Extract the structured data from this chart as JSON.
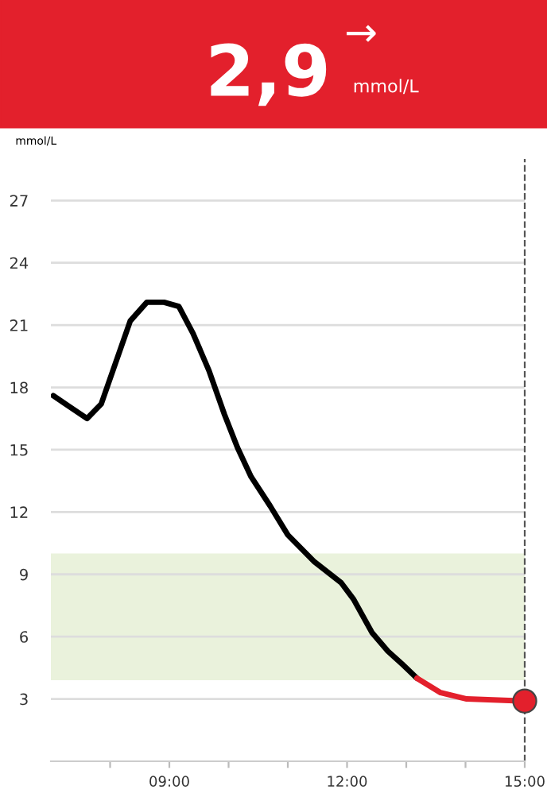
{
  "chart_data": {
    "type": "line",
    "title": "2,9",
    "subtitle": "mmol/L",
    "annotations": [
      "→"
    ],
    "ylabel": "mmol/L",
    "series": [
      {
        "color": "#000000",
        "x": [
          7.04,
          7.61,
          7.85,
          8.34,
          8.62,
          8.91,
          9.16,
          9.4,
          9.67,
          9.93,
          10.15,
          10.38,
          10.7,
          11.0,
          11.45,
          11.9,
          12.11,
          12.42,
          12.69,
          12.96,
          13.18
        ],
        "values": [
          17.6,
          16.5,
          17.2,
          21.2,
          22.1,
          22.1,
          21.9,
          20.6,
          18.8,
          16.7,
          15.1,
          13.7,
          12.3,
          10.9,
          9.6,
          8.6,
          7.8,
          6.2,
          5.3,
          4.6,
          4.0
        ]
      },
      {
        "color": "#e3202c",
        "x": [
          13.18,
          13.58,
          14.02,
          15.0
        ],
        "values": [
          4.0,
          3.3,
          3.0,
          2.9
        ]
      },
      {
        "type": "scatter",
        "color": "#e3202c",
        "x": [
          15.0
        ],
        "values": [
          2.9
        ],
        "marker": "circle"
      }
    ],
    "xlim": [
      7.0,
      15.0
    ],
    "xticks": [
      {
        "value": 8,
        "label": null
      },
      {
        "value": 9,
        "label": "09:00"
      },
      {
        "value": 10,
        "label": null
      },
      {
        "value": 11,
        "label": null
      },
      {
        "value": 12,
        "label": "12:00"
      },
      {
        "value": 13,
        "label": null
      },
      {
        "value": 14,
        "label": null
      },
      {
        "value": 15,
        "label": "15:00"
      }
    ],
    "ylim": [
      0,
      29
    ],
    "yticks": [
      3,
      6,
      9,
      12,
      15,
      18,
      21,
      24,
      27
    ],
    "bands": [
      {
        "axis": "y",
        "from": 3.9,
        "to": 10,
        "color": "#eaf2dc"
      }
    ],
    "ref_lines": [
      {
        "axis": "x",
        "value": 15,
        "color": "#555555",
        "line_style": "dashed"
      }
    ],
    "grid": "y",
    "marker": "none",
    "line_style": "solid",
    "legend": false
  }
}
